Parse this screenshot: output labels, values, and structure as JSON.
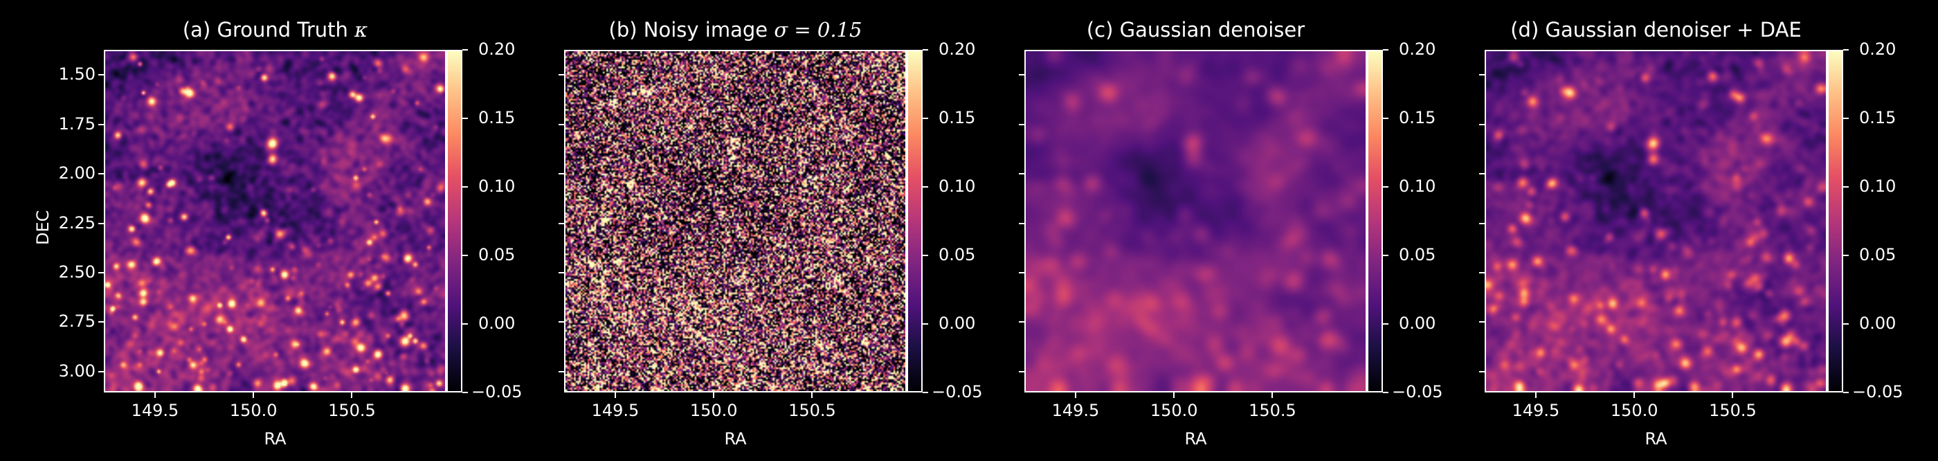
{
  "chart_data": [
    {
      "type": "heatmap",
      "title": "(a) Ground Truth ",
      "title_math": "κ",
      "xlabel": "RA",
      "ylabel": "DEC",
      "xlim": [
        149.24,
        150.98
      ],
      "ylim": [
        3.105,
        1.374
      ],
      "xticks": [
        "149.5",
        "150.0",
        "150.5"
      ],
      "yticks": [
        "1.50",
        "1.75",
        "2.00",
        "2.25",
        "2.50",
        "2.75",
        "3.00"
      ],
      "colorbar": {
        "colormap": "magma",
        "range": [
          -0.05,
          0.2
        ],
        "ticks": [
          "0.20",
          "0.15",
          "0.10",
          "0.05",
          "0.00",
          "−0.05"
        ]
      },
      "content": "ground-truth"
    },
    {
      "type": "heatmap",
      "title": "(b) Noisy image ",
      "title_math": "σ = 0.15",
      "xlabel": "RA",
      "xlim": [
        149.24,
        150.98
      ],
      "ylim": [
        3.105,
        1.374
      ],
      "xticks": [
        "149.5",
        "150.0",
        "150.5"
      ],
      "yticks": [],
      "colorbar": {
        "colormap": "magma",
        "range": [
          -0.05,
          0.2
        ],
        "ticks": [
          "0.20",
          "0.15",
          "0.10",
          "0.05",
          "0.00",
          "−0.05"
        ]
      },
      "content": "noisy",
      "noise_sigma": 0.15
    },
    {
      "type": "heatmap",
      "title": "(c) Gaussian denoiser",
      "title_math": "",
      "xlabel": "RA",
      "xlim": [
        149.24,
        150.98
      ],
      "ylim": [
        3.105,
        1.374
      ],
      "xticks": [
        "149.5",
        "150.0",
        "150.5"
      ],
      "yticks": [],
      "colorbar": {
        "colormap": "magma",
        "range": [
          -0.05,
          0.2
        ],
        "ticks": [
          "0.20",
          "0.15",
          "0.10",
          "0.05",
          "0.00",
          "−0.05"
        ]
      },
      "content": "gaussian"
    },
    {
      "type": "heatmap",
      "title": "(d) Gaussian denoiser + DAE",
      "title_math": "",
      "xlabel": "RA",
      "xlim": [
        149.24,
        150.98
      ],
      "ylim": [
        3.105,
        1.374
      ],
      "xticks": [
        "149.5",
        "150.0",
        "150.5"
      ],
      "yticks": [],
      "colorbar": {
        "colormap": "magma",
        "range": [
          -0.05,
          0.2
        ],
        "ticks": [
          "0.20",
          "0.15",
          "0.10",
          "0.05",
          "0.00",
          "−0.05"
        ]
      },
      "content": "dae"
    }
  ]
}
